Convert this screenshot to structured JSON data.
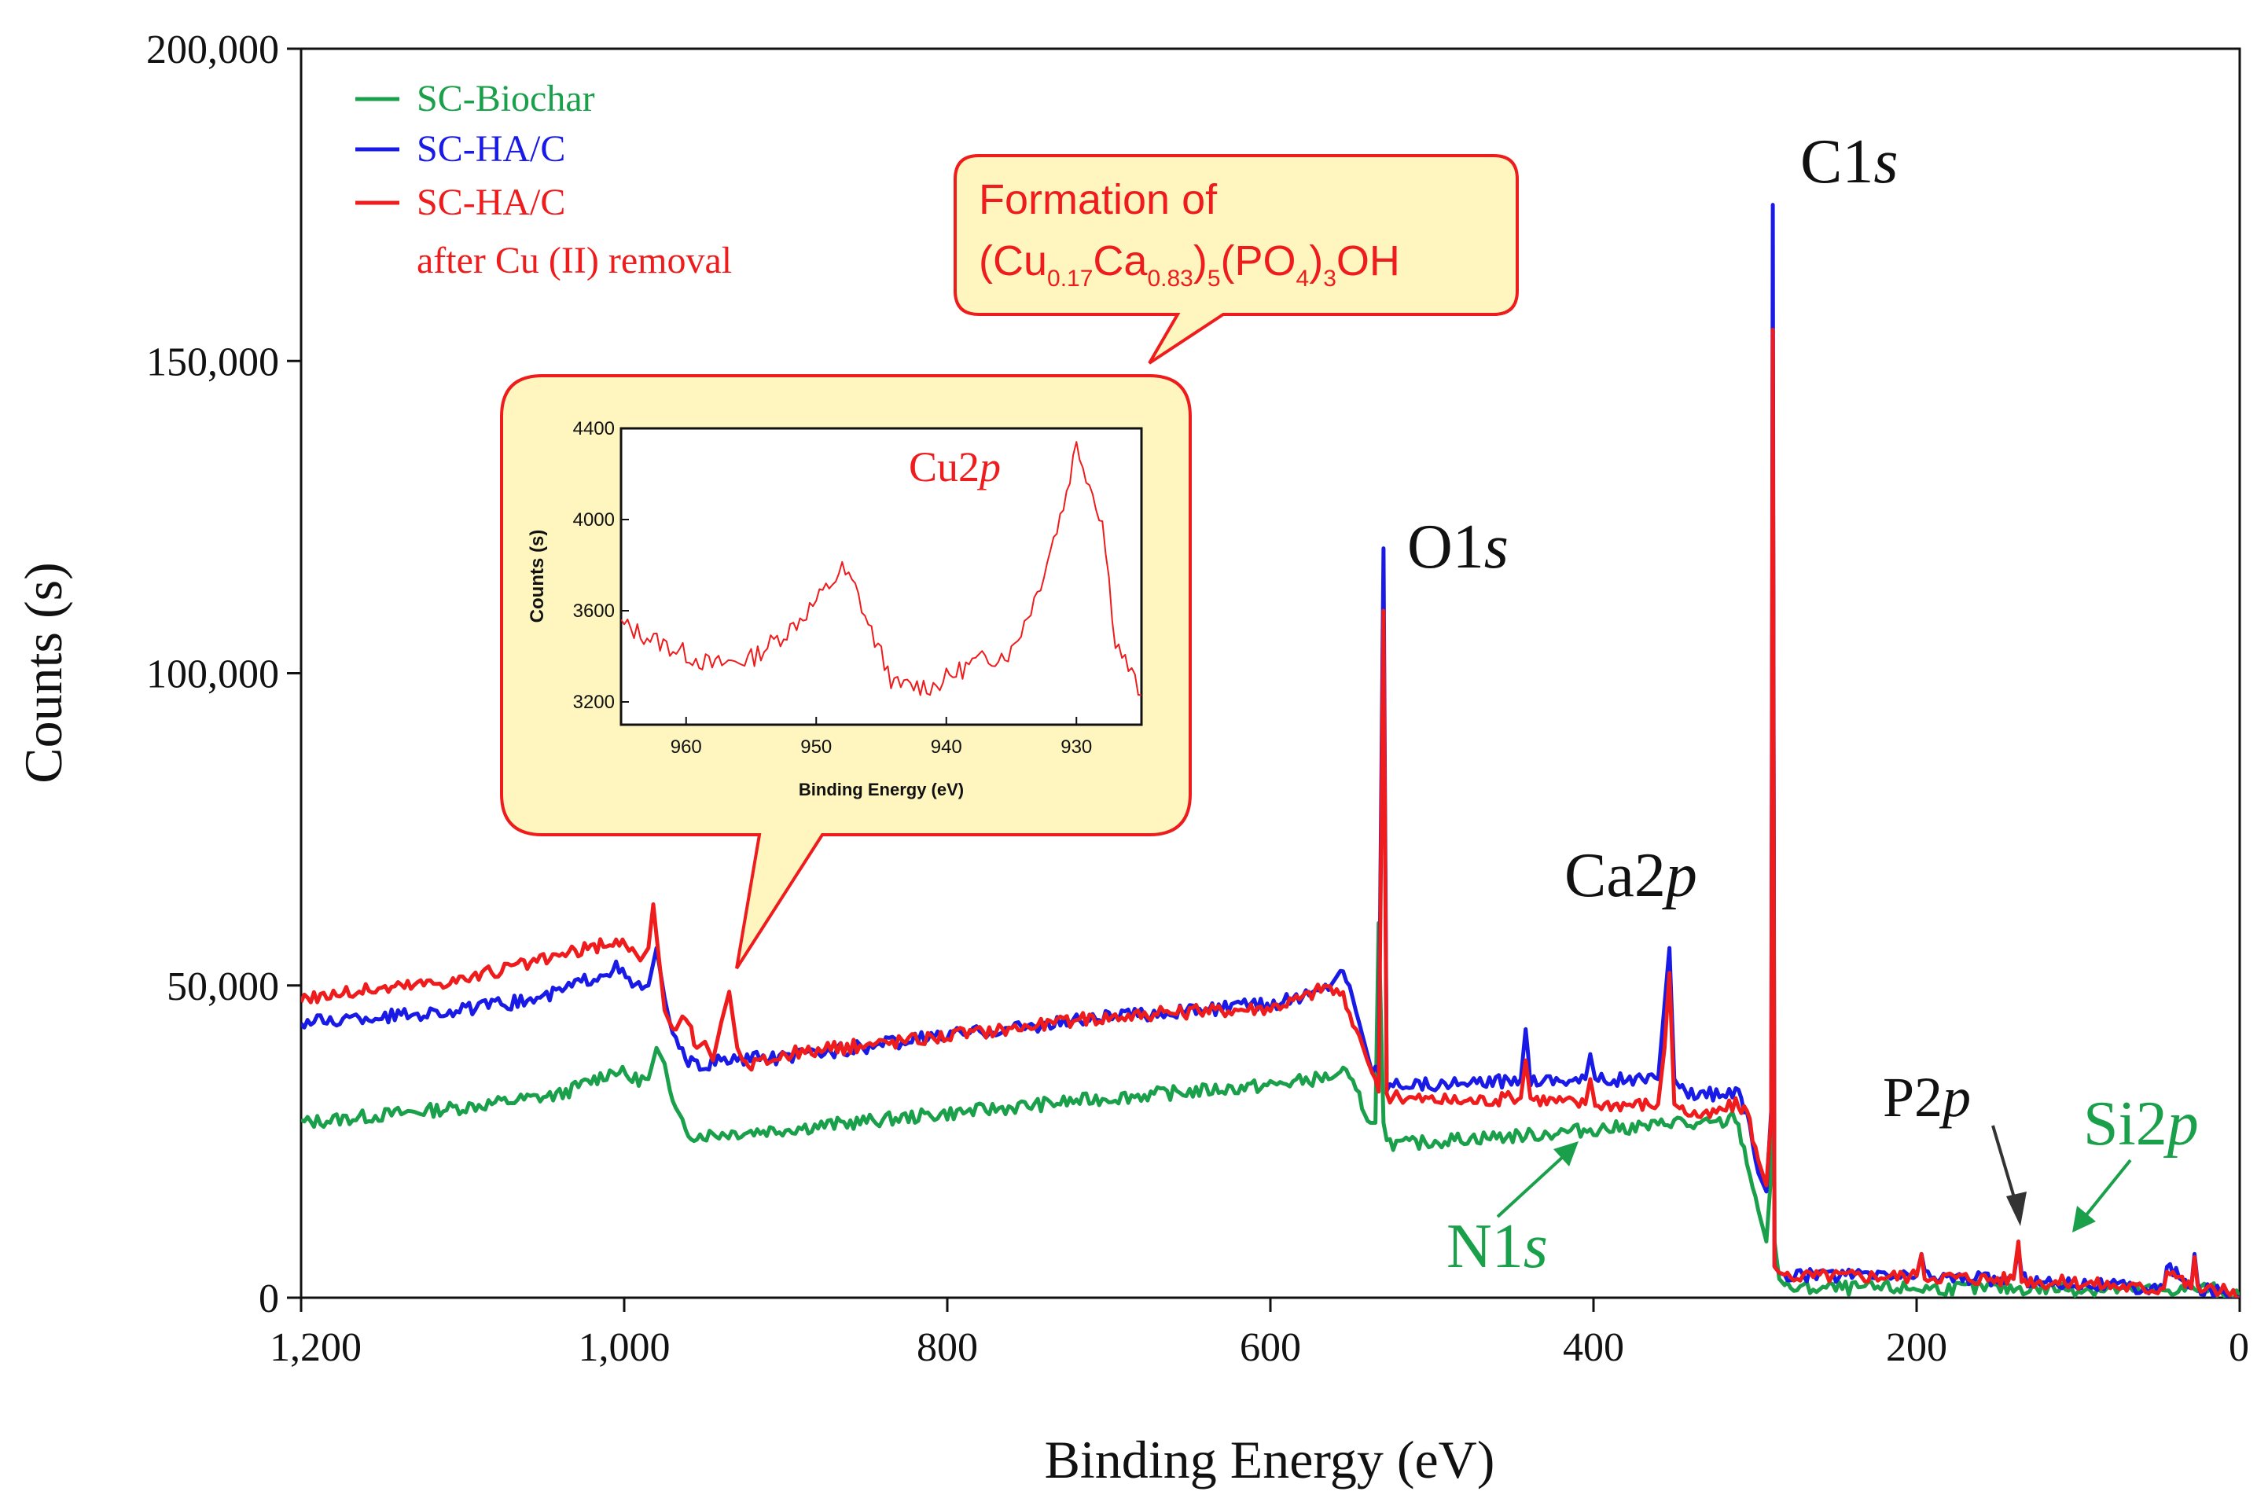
{
  "chart_data": {
    "type": "line",
    "xlabel": "Binding Energy (eV)",
    "ylabel": "Counts (s)",
    "xlim": [
      1200,
      0
    ],
    "ylim": [
      0,
      200000
    ],
    "xticks": [
      1200,
      1000,
      800,
      600,
      400,
      200,
      0
    ],
    "xtick_labels": [
      "1,200",
      "1,000",
      "800",
      "600",
      "400",
      "200",
      "0"
    ],
    "yticks": [
      0,
      50000,
      100000,
      150000,
      200000
    ],
    "ytick_labels": [
      "0",
      "50,000",
      "100,000",
      "150,000",
      "200,000"
    ],
    "legend": {
      "placement": "top-left",
      "entries": [
        {
          "lines": [
            "SC-Biochar"
          ],
          "color": "#1aa04a"
        },
        {
          "lines": [
            "SC-HA/C"
          ],
          "color": "#1a1ae6"
        },
        {
          "lines": [
            "SC-HA/C",
            "after Cu (II) removal"
          ],
          "color": "#ee1c1c"
        }
      ]
    },
    "series": [
      {
        "color": "#1aa04a",
        "x": [
          1200,
          1100,
          1040,
          1005,
          995,
          985,
          980,
          975,
          970,
          962,
          955,
          900,
          800,
          700,
          600,
          560,
          555,
          545,
          538,
          535,
          533,
          530,
          528,
          520,
          480,
          440,
          400,
          360,
          350,
          340,
          320,
          312,
          305,
          298,
          293,
          290,
          289,
          288,
          285,
          280,
          200,
          150,
          120,
          80,
          50,
          20,
          10,
          0
        ],
        "y": [
          28000,
          30500,
          32500,
          36500,
          35000,
          35000,
          40000,
          37500,
          31000,
          26500,
          26000,
          27000,
          29500,
          32000,
          34000,
          35500,
          36500,
          32000,
          28000,
          28000,
          60000,
          28000,
          25000,
          24500,
          25500,
          26000,
          27000,
          27500,
          28500,
          27500,
          28000,
          29000,
          22000,
          14000,
          9000,
          20000,
          150000,
          9000,
          3000,
          1500,
          1500,
          1500,
          1500,
          1300,
          1200,
          1500,
          1000,
          0
        ]
      },
      {
        "color": "#1a1ae6",
        "x": [
          1200,
          1100,
          1050,
          1005,
          995,
          985,
          980,
          975,
          970,
          962,
          955,
          940,
          900,
          800,
          700,
          600,
          570,
          560,
          555,
          545,
          540,
          537,
          535,
          533,
          530,
          528,
          520,
          480,
          445,
          442,
          439,
          405,
          402,
          399,
          360,
          356,
          353,
          350,
          345,
          330,
          312,
          305,
          298,
          293,
          290,
          289,
          288,
          285,
          280,
          200,
          197,
          195,
          150,
          140,
          137,
          135,
          120,
          100,
          60,
          47,
          45,
          30,
          28,
          26,
          10,
          0
        ],
        "y": [
          44000,
          46000,
          48000,
          53000,
          50000,
          50000,
          56000,
          48000,
          42000,
          38000,
          37000,
          38000,
          38500,
          42000,
          45000,
          47000,
          49000,
          51000,
          53000,
          44000,
          39000,
          36000,
          37000,
          36000,
          120000,
          34000,
          34500,
          34000,
          35000,
          43000,
          35000,
          35000,
          39000,
          35000,
          35000,
          47000,
          56000,
          35000,
          33000,
          32500,
          33000,
          30000,
          20000,
          17000,
          30000,
          175000,
          5000,
          4000,
          3500,
          3500,
          7000,
          3500,
          3000,
          3000,
          8000,
          3000,
          2500,
          2500,
          1500,
          1500,
          5000,
          1500,
          7000,
          1500,
          1000,
          0
        ]
      },
      {
        "color": "#ee1c1c",
        "x": [
          1200,
          1100,
          1050,
          1005,
          995,
          990,
          985,
          982,
          980,
          975,
          970,
          962,
          955,
          950,
          945,
          940,
          935,
          930,
          925,
          900,
          800,
          700,
          600,
          580,
          565,
          555,
          545,
          540,
          537,
          535,
          533,
          530,
          528,
          520,
          480,
          445,
          442,
          439,
          405,
          402,
          399,
          360,
          356,
          353,
          350,
          345,
          330,
          312,
          305,
          298,
          293,
          290,
          289,
          288,
          285,
          280,
          200,
          197,
          195,
          150,
          140,
          137,
          135,
          120,
          100,
          60,
          47,
          45,
          30,
          28,
          26,
          10,
          0
        ],
        "y": [
          48000,
          51000,
          54000,
          57000,
          56000,
          54000,
          56000,
          63000,
          58000,
          46000,
          43000,
          45000,
          40000,
          41000,
          38000,
          44000,
          49000,
          40000,
          37000,
          39000,
          42000,
          45000,
          46500,
          48000,
          50000,
          48000,
          42000,
          38000,
          36000,
          35000,
          33000,
          110000,
          32000,
          32000,
          31500,
          32000,
          38000,
          32000,
          31000,
          35000,
          31000,
          31000,
          40000,
          52000,
          31000,
          30000,
          29000,
          31000,
          30000,
          22000,
          18000,
          29000,
          155000,
          5000,
          4000,
          3500,
          3500,
          7000,
          3500,
          3000,
          3000,
          9000,
          3000,
          2500,
          2500,
          1500,
          1500,
          5000,
          1500,
          6500,
          1500,
          1000,
          0
        ]
      }
    ],
    "annotations": {
      "O1s": "O1",
      "C1s": "C1",
      "Ca2p": "Ca2",
      "P2p": "P2",
      "Si2p": "Si2",
      "N1s": "N1",
      "orbital_s": "s",
      "orbital_p": "p"
    },
    "callout": {
      "line1": "Formation of",
      "formula_parts": [
        "(Cu",
        "0.17",
        "Ca",
        "0.83",
        ")",
        "5",
        "(PO",
        "4",
        ")",
        "3",
        "OH"
      ]
    },
    "inset": {
      "type": "line",
      "xlabel": "Binding Energy (eV)",
      "ylabel": "Counts (s)",
      "label": "Cu2",
      "label_italic": "p",
      "xlim": [
        965,
        925
      ],
      "ylim": [
        3100,
        4400
      ],
      "xticks": [
        960,
        950,
        940,
        930
      ],
      "xtick_labels": [
        "960",
        "950",
        "940",
        "930"
      ],
      "yticks": [
        3200,
        3600,
        4000,
        4400
      ],
      "ytick_labels": [
        "3200",
        "3600",
        "4000",
        "4400"
      ],
      "series": [
        {
          "color": "#ee1c1c",
          "x": [
            965,
            962,
            958,
            955,
            952,
            950,
            948,
            947,
            946,
            944,
            941,
            938,
            935,
            933,
            931,
            930,
            928,
            927,
            925
          ],
          "y": [
            3540,
            3460,
            3360,
            3390,
            3520,
            3640,
            3780,
            3700,
            3540,
            3270,
            3270,
            3370,
            3420,
            3680,
            4060,
            4330,
            3990,
            3470,
            3230
          ]
        }
      ]
    }
  }
}
